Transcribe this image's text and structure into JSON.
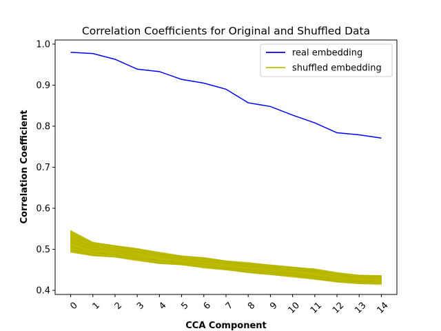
{
  "chart_data": {
    "type": "line",
    "title": "Correlation Coefficients for Original and Shuffled Data",
    "xlabel": "CCA Component",
    "ylabel": "Correlation Coefficient",
    "x": [
      0,
      1,
      2,
      3,
      4,
      5,
      6,
      7,
      8,
      9,
      10,
      11,
      12,
      13,
      14
    ],
    "x_tick_labels": [
      "0",
      "1",
      "2",
      "3",
      "4",
      "5",
      "6",
      "7",
      "8",
      "9",
      "10",
      "11",
      "12",
      "13",
      "14"
    ],
    "y_ticks": [
      0.4,
      0.5,
      0.6,
      0.7,
      0.8,
      0.9,
      1.0
    ],
    "y_tick_labels": [
      "0.4",
      "0.5",
      "0.6",
      "0.7",
      "0.8",
      "0.9",
      "1.0"
    ],
    "xlim": [
      -0.7,
      14.7
    ],
    "ylim": [
      0.39,
      1.01
    ],
    "grid": false,
    "legend_position": "top-right",
    "series": [
      {
        "name": "real embedding",
        "color": "#0000ff",
        "values": [
          0.98,
          0.977,
          0.963,
          0.939,
          0.933,
          0.914,
          0.905,
          0.89,
          0.857,
          0.848,
          0.827,
          0.808,
          0.784,
          0.779,
          0.771
        ]
      },
      {
        "name": "shuffled embedding",
        "color": "#bfbf00",
        "band_upper": [
          0.545,
          0.517,
          0.509,
          0.502,
          0.492,
          0.484,
          0.48,
          0.472,
          0.467,
          0.462,
          0.457,
          0.452,
          0.443,
          0.437,
          0.436
        ],
        "band_lower": [
          0.493,
          0.484,
          0.481,
          0.473,
          0.465,
          0.462,
          0.455,
          0.45,
          0.443,
          0.438,
          0.433,
          0.427,
          0.42,
          0.416,
          0.415
        ],
        "band_mid": [
          0.51,
          0.497,
          0.493,
          0.487,
          0.478,
          0.472,
          0.467,
          0.46,
          0.455,
          0.45,
          0.445,
          0.44,
          0.432,
          0.427,
          0.425
        ]
      }
    ]
  }
}
